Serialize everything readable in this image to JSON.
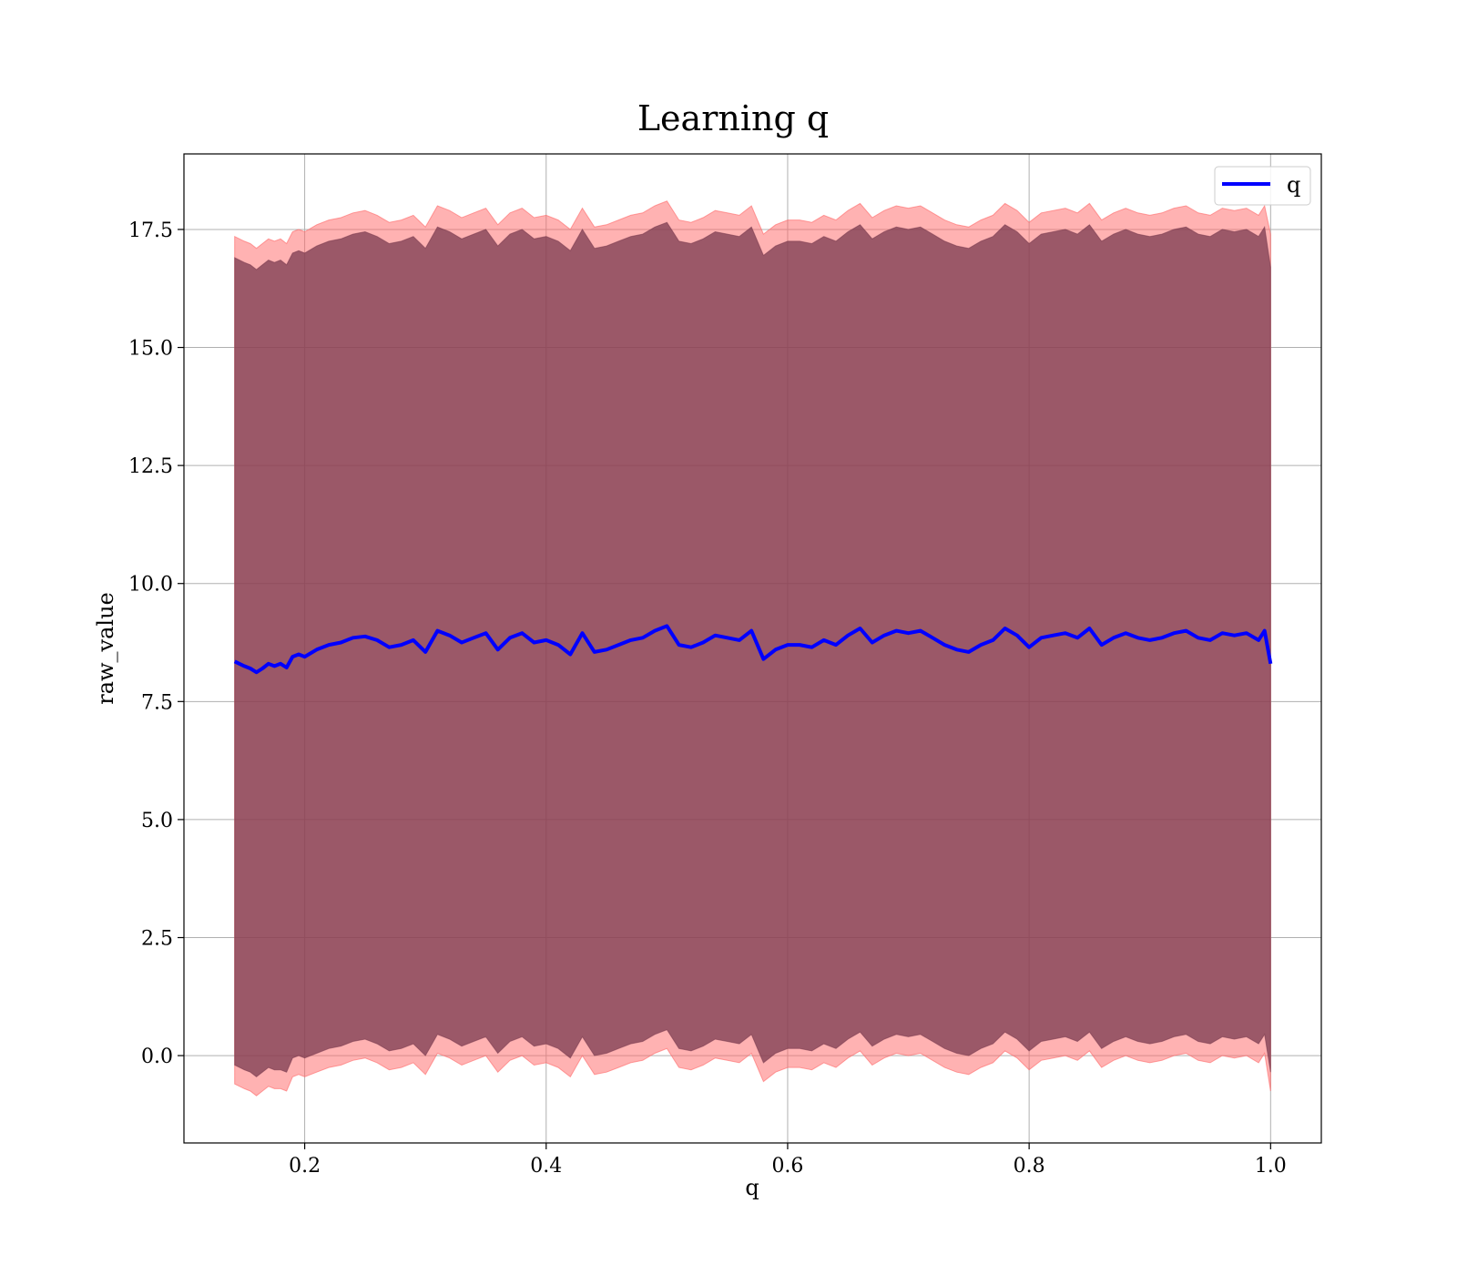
{
  "chart_data": {
    "type": "line",
    "title": "Learning q",
    "xlabel": "q",
    "ylabel": "raw_value",
    "xlim": [
      0.1,
      1.042
    ],
    "ylim": [
      -1.85,
      19.1
    ],
    "xticks": [
      0.2,
      0.4,
      0.6,
      0.8,
      1.0
    ],
    "xtick_labels": [
      "0.2",
      "0.4",
      "0.6",
      "0.8",
      "1.0"
    ],
    "yticks": [
      0.0,
      2.5,
      5.0,
      7.5,
      10.0,
      12.5,
      15.0,
      17.5
    ],
    "ytick_labels": [
      "0.0",
      "2.5",
      "5.0",
      "7.5",
      "10.0",
      "12.5",
      "15.0",
      "17.5"
    ],
    "grid": true,
    "legend_position": "top-right",
    "colors": {
      "line": "#0000ff",
      "inner_band": "#7a3a4f",
      "outer_band": "#ff6666"
    },
    "series": [
      {
        "name": "q",
        "x": [
          0.142,
          0.15,
          0.155,
          0.16,
          0.165,
          0.17,
          0.175,
          0.18,
          0.185,
          0.19,
          0.195,
          0.2,
          0.21,
          0.22,
          0.23,
          0.24,
          0.25,
          0.26,
          0.27,
          0.28,
          0.29,
          0.3,
          0.31,
          0.32,
          0.33,
          0.34,
          0.35,
          0.36,
          0.37,
          0.38,
          0.39,
          0.4,
          0.41,
          0.42,
          0.43,
          0.44,
          0.45,
          0.46,
          0.47,
          0.48,
          0.49,
          0.5,
          0.51,
          0.52,
          0.53,
          0.54,
          0.55,
          0.56,
          0.57,
          0.58,
          0.59,
          0.6,
          0.61,
          0.62,
          0.63,
          0.64,
          0.65,
          0.66,
          0.67,
          0.68,
          0.69,
          0.7,
          0.71,
          0.72,
          0.73,
          0.74,
          0.75,
          0.76,
          0.77,
          0.78,
          0.79,
          0.8,
          0.81,
          0.82,
          0.83,
          0.84,
          0.85,
          0.86,
          0.87,
          0.88,
          0.89,
          0.9,
          0.91,
          0.92,
          0.93,
          0.94,
          0.95,
          0.96,
          0.97,
          0.98,
          0.99,
          0.995,
          1.0
        ],
        "y": [
          8.35,
          8.25,
          8.2,
          8.12,
          8.2,
          8.3,
          8.25,
          8.3,
          8.22,
          8.45,
          8.5,
          8.45,
          8.6,
          8.7,
          8.75,
          8.85,
          8.88,
          8.8,
          8.65,
          8.7,
          8.8,
          8.55,
          9.0,
          8.9,
          8.75,
          8.85,
          8.95,
          8.6,
          8.85,
          8.95,
          8.75,
          8.8,
          8.7,
          8.5,
          8.95,
          8.55,
          8.6,
          8.7,
          8.8,
          8.85,
          9.0,
          9.1,
          8.7,
          8.65,
          8.75,
          8.9,
          8.85,
          8.8,
          9.0,
          8.4,
          8.6,
          8.7,
          8.7,
          8.65,
          8.8,
          8.7,
          8.9,
          9.05,
          8.75,
          8.9,
          9.0,
          8.95,
          9.0,
          8.85,
          8.7,
          8.6,
          8.55,
          8.7,
          8.8,
          9.05,
          8.9,
          8.65,
          8.85,
          8.9,
          8.95,
          8.85,
          9.05,
          8.7,
          8.85,
          8.95,
          8.85,
          8.8,
          8.85,
          8.95,
          9.0,
          8.85,
          8.8,
          8.95,
          8.9,
          8.95,
          8.8,
          9.0,
          8.3
        ]
      }
    ],
    "bands": [
      {
        "role": "outer",
        "lower": [
          -0.6,
          -0.7,
          -0.75,
          -0.85,
          -0.75,
          -0.65,
          -0.7,
          -0.7,
          -0.75,
          -0.45,
          -0.4,
          -0.45,
          -0.35,
          -0.25,
          -0.2,
          -0.1,
          -0.05,
          -0.15,
          -0.3,
          -0.25,
          -0.15,
          -0.4,
          0.05,
          -0.05,
          -0.2,
          -0.1,
          0.0,
          -0.35,
          -0.1,
          0.0,
          -0.2,
          -0.15,
          -0.25,
          -0.45,
          0.0,
          -0.4,
          -0.35,
          -0.25,
          -0.15,
          -0.1,
          0.05,
          0.15,
          -0.25,
          -0.3,
          -0.2,
          -0.05,
          -0.1,
          -0.15,
          0.05,
          -0.55,
          -0.35,
          -0.25,
          -0.25,
          -0.3,
          -0.15,
          -0.25,
          -0.05,
          0.1,
          -0.2,
          -0.05,
          0.05,
          0.0,
          0.05,
          -0.1,
          -0.25,
          -0.35,
          -0.4,
          -0.25,
          -0.15,
          0.1,
          -0.05,
          -0.3,
          -0.1,
          -0.05,
          0.0,
          -0.1,
          0.1,
          -0.25,
          -0.1,
          0.0,
          -0.1,
          -0.15,
          -0.1,
          0.0,
          0.05,
          -0.1,
          -0.15,
          0.0,
          -0.05,
          0.0,
          -0.15,
          0.05,
          -0.75
        ],
        "upper": [
          17.35,
          17.25,
          17.2,
          17.1,
          17.2,
          17.3,
          17.25,
          17.3,
          17.2,
          17.45,
          17.5,
          17.45,
          17.6,
          17.7,
          17.75,
          17.85,
          17.9,
          17.8,
          17.65,
          17.7,
          17.8,
          17.55,
          18.0,
          17.9,
          17.75,
          17.85,
          17.95,
          17.6,
          17.85,
          17.95,
          17.75,
          17.8,
          17.7,
          17.5,
          17.95,
          17.55,
          17.6,
          17.7,
          17.8,
          17.85,
          18.0,
          18.1,
          17.7,
          17.65,
          17.75,
          17.9,
          17.85,
          17.8,
          18.0,
          17.4,
          17.6,
          17.7,
          17.7,
          17.65,
          17.8,
          17.7,
          17.9,
          18.05,
          17.75,
          17.9,
          18.0,
          17.95,
          18.0,
          17.85,
          17.7,
          17.6,
          17.55,
          17.7,
          17.8,
          18.05,
          17.9,
          17.65,
          17.85,
          17.9,
          17.95,
          17.85,
          18.05,
          17.7,
          17.85,
          17.95,
          17.85,
          17.8,
          17.85,
          17.95,
          18.0,
          17.85,
          17.8,
          17.95,
          17.9,
          17.95,
          17.8,
          18.0,
          17.4
        ]
      },
      {
        "role": "inner",
        "lower": [
          -0.2,
          -0.3,
          -0.35,
          -0.45,
          -0.35,
          -0.25,
          -0.3,
          -0.3,
          -0.35,
          -0.05,
          0.0,
          -0.05,
          0.05,
          0.15,
          0.2,
          0.3,
          0.35,
          0.25,
          0.1,
          0.15,
          0.25,
          0.0,
          0.45,
          0.35,
          0.2,
          0.3,
          0.4,
          0.05,
          0.3,
          0.4,
          0.2,
          0.25,
          0.15,
          -0.05,
          0.4,
          0.0,
          0.05,
          0.15,
          0.25,
          0.3,
          0.45,
          0.55,
          0.15,
          0.1,
          0.2,
          0.35,
          0.3,
          0.25,
          0.45,
          -0.15,
          0.05,
          0.15,
          0.15,
          0.1,
          0.25,
          0.15,
          0.35,
          0.5,
          0.2,
          0.35,
          0.45,
          0.4,
          0.45,
          0.3,
          0.15,
          0.05,
          0.0,
          0.15,
          0.25,
          0.5,
          0.35,
          0.1,
          0.3,
          0.35,
          0.4,
          0.3,
          0.5,
          0.15,
          0.3,
          0.4,
          0.3,
          0.25,
          0.3,
          0.4,
          0.45,
          0.3,
          0.25,
          0.4,
          0.35,
          0.4,
          0.25,
          0.45,
          -0.35
        ],
        "upper": [
          16.9,
          16.8,
          16.75,
          16.65,
          16.75,
          16.85,
          16.8,
          16.85,
          16.75,
          17.0,
          17.05,
          17.0,
          17.15,
          17.25,
          17.3,
          17.4,
          17.45,
          17.35,
          17.2,
          17.25,
          17.35,
          17.1,
          17.55,
          17.45,
          17.3,
          17.4,
          17.5,
          17.15,
          17.4,
          17.5,
          17.3,
          17.35,
          17.25,
          17.05,
          17.5,
          17.1,
          17.15,
          17.25,
          17.35,
          17.4,
          17.55,
          17.65,
          17.25,
          17.2,
          17.3,
          17.45,
          17.4,
          17.35,
          17.55,
          16.95,
          17.15,
          17.25,
          17.25,
          17.2,
          17.35,
          17.25,
          17.45,
          17.6,
          17.3,
          17.45,
          17.55,
          17.5,
          17.55,
          17.4,
          17.25,
          17.15,
          17.1,
          17.25,
          17.35,
          17.6,
          17.45,
          17.2,
          17.4,
          17.45,
          17.5,
          17.4,
          17.6,
          17.25,
          17.4,
          17.5,
          17.4,
          17.35,
          17.4,
          17.5,
          17.55,
          17.4,
          17.35,
          17.5,
          17.45,
          17.5,
          17.35,
          17.55,
          16.7
        ]
      }
    ]
  }
}
